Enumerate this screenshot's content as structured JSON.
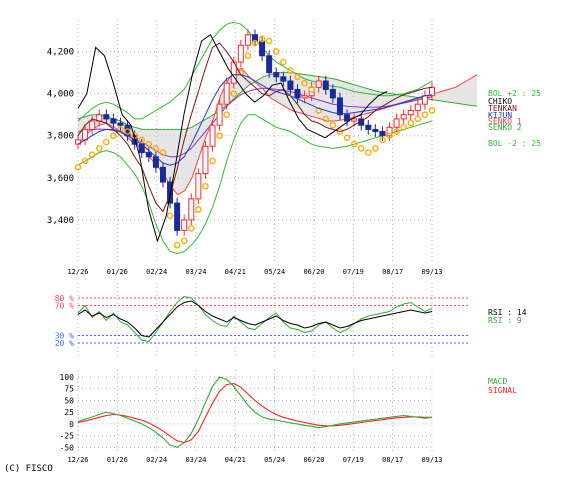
{
  "copyright": "(C) FISCO",
  "colors": {
    "candle_up": "#ff2a2a",
    "candle_down": "#1a2a9a",
    "ichimoku_cloud": "#c7c7c7",
    "chiko": "#000000",
    "tenkan": "#7a1a1a",
    "kijun": "#1e3cd8",
    "senko1": "#ff4444",
    "senko2": "#33aa33",
    "bollinger": "#33bb33",
    "parabolic": "#ffaa00",
    "ma": "#9a2bd6",
    "rsi14": "#000000",
    "rsi9": "#33aa33",
    "macd": "#33aa33",
    "signal": "#ff2222",
    "ref_high": "#ff4466",
    "ref_low": "#4466ff",
    "grid": "#b0b0b0"
  },
  "chart_data": [
    {
      "type": "line",
      "name": "price",
      "x_labels": [
        "12/26",
        "01/26",
        "02/24",
        "03/24",
        "04/21",
        "05/24",
        "06/20",
        "07/19",
        "08/17",
        "09/13"
      ],
      "y_ticks": [
        "3,400",
        "3,600",
        "3,800",
        "4,000",
        "4,200"
      ],
      "ylim": [
        3200,
        4350
      ],
      "legend": [
        "BOL +2 : 25",
        "CHIKO",
        "TENKAN",
        "KIJUN",
        "SENKO 1",
        "SENKO 2",
        "BOL -2 : 25"
      ],
      "close": [
        3780,
        3830,
        3870,
        3900,
        3880,
        3860,
        3850,
        3800,
        3760,
        3720,
        3700,
        3650,
        3580,
        3480,
        3350,
        3400,
        3500,
        3620,
        3750,
        3850,
        3950,
        4050,
        4150,
        4230,
        4280,
        4250,
        4180,
        4100,
        4080,
        4060,
        4020,
        3980,
        3990,
        4030,
        4060,
        4020,
        3980,
        3900,
        3870,
        3880,
        3850,
        3830,
        3820,
        3800,
        3840,
        3880,
        3900,
        3920,
        3950,
        3990,
        4030
      ],
      "ichimoku": {
        "chiko": [
          3930,
          4000,
          4220,
          4180,
          4050,
          3900,
          3850,
          3700,
          3450,
          3300,
          3420,
          3650,
          3900,
          4100,
          4250,
          4280,
          4200,
          4120,
          4060,
          4000,
          3960,
          3990,
          4040,
          4050,
          3960,
          3880,
          3830,
          3810,
          3790,
          3820,
          3850,
          3880,
          3900,
          3950,
          3990,
          4010
        ],
        "tenkan": [
          3800,
          3850,
          3880,
          3870,
          3860,
          3830,
          3800,
          3760,
          3700,
          3650,
          3560,
          3480,
          3440,
          3520,
          3640,
          3780,
          3900,
          4010,
          4120,
          4220,
          4240,
          4200,
          4150,
          4090,
          4060,
          4030,
          4000,
          3990,
          4010,
          4020,
          3990,
          3950,
          3900,
          3870,
          3860,
          3840,
          3830,
          3820,
          3830,
          3850,
          3870,
          3890,
          3920,
          3940,
          3960,
          3980,
          3995,
          4005,
          4015,
          4025,
          4030
        ],
        "kijun": [
          3760,
          3780,
          3800,
          3820,
          3830,
          3830,
          3820,
          3800,
          3780,
          3760,
          3730,
          3700,
          3670,
          3660,
          3670,
          3700,
          3760,
          3830,
          3900,
          3970,
          4030,
          4070,
          4090,
          4090,
          4080,
          4060,
          4040,
          4020,
          4010,
          4000,
          3990,
          3975,
          3960,
          3945,
          3930,
          3920,
          3910,
          3905,
          3905,
          3910,
          3915,
          3920,
          3925,
          3930,
          3940,
          3950,
          3960,
          3970,
          3980,
          3990,
          3995
        ],
        "senko1": [
          3760,
          3800,
          3830,
          3850,
          3860,
          3840,
          3820,
          3790,
          3760,
          3740,
          3700,
          3660,
          3620,
          3560,
          3520,
          3540,
          3600,
          3700,
          3800,
          3880,
          3990,
          4060,
          4110,
          4120,
          4080,
          4050,
          4020,
          3980,
          3960,
          3940,
          3920,
          3910,
          3900,
          3890,
          3880,
          3870,
          3870,
          3875,
          3880,
          3890,
          3900,
          3910,
          3920,
          3930,
          3940,
          3950,
          3960,
          3970,
          3980,
          3990,
          4000,
          4010,
          4020,
          4030,
          4050,
          4070,
          4090
        ],
        "senko2": [
          3880,
          3890,
          3900,
          3900,
          3890,
          3880,
          3870,
          3850,
          3840,
          3830,
          3830,
          3830,
          3830,
          3830,
          3830,
          3830,
          3840,
          3860,
          3880,
          3900,
          3920,
          3950,
          3980,
          4010,
          4040,
          4060,
          4080,
          4090,
          4100,
          4100,
          4100,
          4095,
          4090,
          4085,
          4080,
          4075,
          4070,
          4060,
          4050,
          4040,
          4030,
          4020,
          4010,
          4005,
          4000,
          3995,
          3990,
          3985,
          3980,
          3975,
          3970,
          3965,
          3960,
          3955,
          3950,
          3945,
          3940
        ]
      },
      "bollinger_upper": [
        3870,
        3900,
        3930,
        3950,
        3960,
        3950,
        3930,
        3910,
        3880,
        3880,
        3900,
        3920,
        3940,
        3960,
        3990,
        4020,
        4080,
        4140,
        4200,
        4260,
        4300,
        4330,
        4340,
        4330,
        4300,
        4260,
        4220,
        4180,
        4150,
        4130,
        4110,
        4090,
        4070,
        4060,
        4050,
        4040,
        4035,
        4030,
        4020,
        4010,
        4005,
        4000,
        3995,
        3990,
        3990,
        3995,
        4000,
        4010,
        4020,
        4040,
        4060
      ],
      "bollinger_lower": [
        3660,
        3680,
        3700,
        3720,
        3730,
        3720,
        3700,
        3660,
        3620,
        3560,
        3480,
        3380,
        3300,
        3250,
        3240,
        3250,
        3280,
        3320,
        3380,
        3460,
        3560,
        3680,
        3780,
        3860,
        3900,
        3900,
        3880,
        3860,
        3840,
        3830,
        3820,
        3800,
        3780,
        3760,
        3750,
        3745,
        3740,
        3745,
        3750,
        3760,
        3770,
        3780,
        3790,
        3800,
        3810,
        3820,
        3830,
        3840,
        3850,
        3860,
        3870
      ],
      "parabolic": [
        3650,
        3680,
        3710,
        3740,
        3770,
        3800,
        3830,
        3820,
        3800,
        3780,
        3760,
        3740,
        3720,
        3420,
        3280,
        3300,
        3360,
        3450,
        3560,
        3680,
        3800,
        3900,
        4000,
        4100,
        4180,
        4240,
        4260,
        4250,
        4200,
        4150,
        4110,
        4080,
        4050,
        4020,
        3920,
        3880,
        3850,
        3820,
        3790,
        3760,
        3740,
        3720,
        3740,
        3780,
        3800,
        3820,
        3840,
        3860,
        3880,
        3900,
        3920
      ],
      "moving_average": [
        3820,
        3825,
        3830,
        3832,
        3830,
        3825,
        3815,
        3800,
        3785,
        3770,
        3750,
        3730,
        3710,
        3700,
        3700,
        3715,
        3740,
        3780,
        3820,
        3860,
        3900,
        3940,
        3970,
        3995,
        4010,
        4020,
        4025,
        4025,
        4020,
        4015,
        4010,
        4000,
        3990,
        3980,
        3970,
        3960,
        3950,
        3945,
        3940,
        3938,
        3936,
        3935,
        3936,
        3938,
        3942,
        3948,
        3955,
        3962,
        3970,
        3978,
        3985
      ]
    },
    {
      "type": "line",
      "name": "rsi",
      "y_ticks": [
        "20 %",
        "30 %",
        "70 %",
        "80 %"
      ],
      "ylim": [
        0,
        100
      ],
      "ref_lines": [
        80,
        70,
        30,
        20
      ],
      "legend": [
        "RSI : 14",
        "RSI : 9"
      ],
      "series": [
        {
          "name": "RSI : 14",
          "values": [
            58,
            64,
            56,
            60,
            54,
            58,
            52,
            48,
            40,
            30,
            28,
            38,
            48,
            58,
            68,
            74,
            76,
            70,
            62,
            56,
            52,
            48,
            54,
            50,
            46,
            44,
            48,
            52,
            56,
            50,
            46,
            44,
            40,
            42,
            46,
            48,
            44,
            40,
            42,
            46,
            50,
            52,
            54,
            56,
            58,
            60,
            62,
            64,
            62,
            60,
            62
          ]
        },
        {
          "name": "RSI : 9",
          "values": [
            60,
            70,
            54,
            62,
            50,
            60,
            48,
            44,
            34,
            24,
            22,
            34,
            48,
            62,
            74,
            82,
            80,
            70,
            58,
            50,
            44,
            42,
            56,
            48,
            40,
            38,
            46,
            54,
            60,
            48,
            40,
            38,
            34,
            36,
            44,
            48,
            40,
            34,
            38,
            46,
            52,
            56,
            58,
            60,
            62,
            68,
            72,
            74,
            68,
            62,
            66
          ]
        }
      ]
    },
    {
      "type": "line",
      "name": "macd",
      "y_ticks": [
        "-50",
        "-25",
        "0",
        "25",
        "50",
        "75",
        "100"
      ],
      "ylim": [
        -60,
        115
      ],
      "legend": [
        "MACD",
        "SIGNAL"
      ],
      "series": [
        {
          "name": "MACD",
          "values": [
            5,
            10,
            15,
            20,
            25,
            22,
            18,
            12,
            6,
            0,
            -8,
            -18,
            -30,
            -45,
            -50,
            -40,
            -20,
            10,
            45,
            80,
            100,
            95,
            80,
            60,
            40,
            25,
            15,
            10,
            8,
            5,
            2,
            0,
            -3,
            -5,
            -8,
            -6,
            -3,
            0,
            2,
            4,
            6,
            8,
            10,
            12,
            14,
            16,
            18,
            16,
            14,
            12,
            14
          ]
        },
        {
          "name": "SIGNAL",
          "values": [
            3,
            6,
            10,
            14,
            18,
            20,
            19,
            16,
            12,
            8,
            2,
            -6,
            -15,
            -26,
            -36,
            -40,
            -34,
            -16,
            14,
            44,
            70,
            84,
            86,
            78,
            64,
            50,
            38,
            28,
            20,
            14,
            10,
            6,
            3,
            0,
            -3,
            -4,
            -4,
            -3,
            -1,
            1,
            3,
            5,
            7,
            9,
            11,
            13,
            14,
            15,
            15,
            14,
            14
          ]
        }
      ]
    }
  ]
}
